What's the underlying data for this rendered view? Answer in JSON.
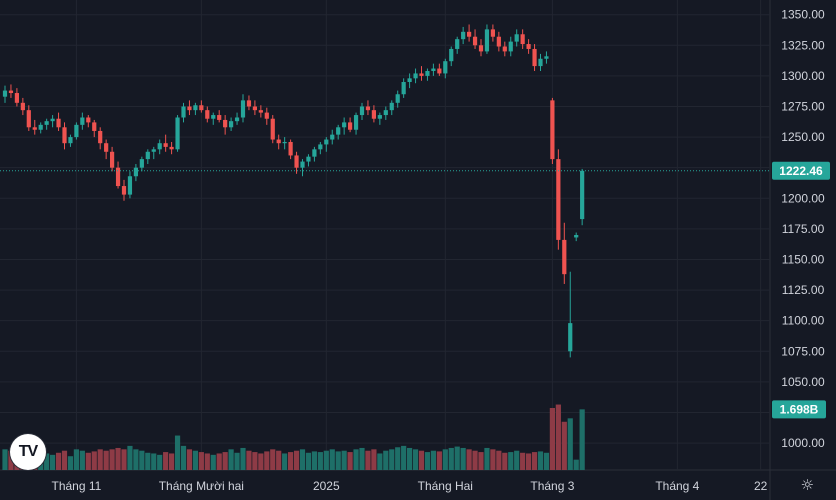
{
  "chart_data": {
    "type": "candlestick",
    "y_axis": {
      "min": 978,
      "max": 1362,
      "ticks": [
        1000,
        1025,
        1050,
        1075,
        1100,
        1125,
        1150,
        1175,
        1200,
        1225,
        1250,
        1275,
        1300,
        1325,
        1350
      ],
      "tick_labels": [
        "1000.00",
        "1025.00",
        "1050.00",
        "1075.00",
        "1100.00",
        "1125.00",
        "1150.00",
        "1175.00",
        "1200.00",
        "1225.00",
        "1250.00",
        "1275.00",
        "1300.00",
        "1325.00",
        "1350.00"
      ]
    },
    "x_axis": {
      "labels": [
        {
          "text": "Tháng 11",
          "index": 12
        },
        {
          "text": "Tháng Mười hai",
          "index": 33
        },
        {
          "text": "2025",
          "index": 54
        },
        {
          "text": "Tháng Hai",
          "index": 74
        },
        {
          "text": "Tháng 3",
          "index": 92
        },
        {
          "text": "Tháng 4",
          "index": 113
        },
        {
          "text": "22",
          "index": 127
        }
      ]
    },
    "last_price": {
      "value": 1222.46,
      "label": "1222.46"
    },
    "last_volume": {
      "label": "1.698B"
    },
    "volume_max": 1.698,
    "colors": {
      "up": "#26a69a",
      "down": "#ef5350",
      "up_vol": "#1e6f68",
      "down_vol": "#8e3b46"
    },
    "candles": [
      [
        1283,
        1292,
        1278,
        1288,
        0.3
      ],
      [
        1288,
        1293,
        1282,
        1286,
        0.28
      ],
      [
        1286,
        1290,
        1275,
        1278,
        0.25
      ],
      [
        1278,
        1282,
        1268,
        1272,
        0.22
      ],
      [
        1272,
        1276,
        1255,
        1258,
        0.3
      ],
      [
        1258,
        1264,
        1252,
        1256,
        0.28
      ],
      [
        1256,
        1262,
        1253,
        1260,
        0.2
      ],
      [
        1260,
        1265,
        1256,
        1263,
        0.24
      ],
      [
        1263,
        1268,
        1258,
        1265,
        0.22
      ],
      [
        1265,
        1270,
        1255,
        1258,
        0.25
      ],
      [
        1258,
        1262,
        1240,
        1245,
        0.28
      ],
      [
        1245,
        1252,
        1242,
        1250,
        0.2
      ],
      [
        1250,
        1262,
        1248,
        1260,
        0.3
      ],
      [
        1260,
        1270,
        1256,
        1266,
        0.28
      ],
      [
        1266,
        1268,
        1258,
        1262,
        0.25
      ],
      [
        1262,
        1264,
        1250,
        1255,
        0.27
      ],
      [
        1255,
        1258,
        1240,
        1245,
        0.3
      ],
      [
        1245,
        1248,
        1232,
        1238,
        0.28
      ],
      [
        1238,
        1242,
        1222,
        1225,
        0.3
      ],
      [
        1225,
        1230,
        1208,
        1210,
        0.32
      ],
      [
        1210,
        1215,
        1198,
        1203,
        0.3
      ],
      [
        1203,
        1222,
        1200,
        1218,
        0.35
      ],
      [
        1218,
        1228,
        1214,
        1225,
        0.3
      ],
      [
        1225,
        1234,
        1222,
        1232,
        0.28
      ],
      [
        1232,
        1240,
        1228,
        1238,
        0.25
      ],
      [
        1238,
        1242,
        1232,
        1240,
        0.24
      ],
      [
        1240,
        1248,
        1236,
        1245,
        0.22
      ],
      [
        1245,
        1252,
        1238,
        1242,
        0.26
      ],
      [
        1242,
        1246,
        1236,
        1240,
        0.24
      ],
      [
        1240,
        1268,
        1238,
        1266,
        0.5
      ],
      [
        1266,
        1278,
        1262,
        1275,
        0.35
      ],
      [
        1275,
        1280,
        1268,
        1272,
        0.3
      ],
      [
        1272,
        1278,
        1268,
        1276,
        0.28
      ],
      [
        1276,
        1280,
        1270,
        1272,
        0.26
      ],
      [
        1272,
        1275,
        1262,
        1265,
        0.24
      ],
      [
        1265,
        1270,
        1260,
        1268,
        0.22
      ],
      [
        1268,
        1272,
        1262,
        1264,
        0.24
      ],
      [
        1264,
        1268,
        1252,
        1258,
        0.26
      ],
      [
        1258,
        1266,
        1255,
        1263,
        0.3
      ],
      [
        1263,
        1270,
        1260,
        1266,
        0.25
      ],
      [
        1266,
        1285,
        1262,
        1280,
        0.32
      ],
      [
        1280,
        1284,
        1272,
        1275,
        0.28
      ],
      [
        1275,
        1280,
        1268,
        1272,
        0.26
      ],
      [
        1272,
        1276,
        1266,
        1270,
        0.24
      ],
      [
        1270,
        1274,
        1260,
        1265,
        0.27
      ],
      [
        1265,
        1268,
        1245,
        1248,
        0.3
      ],
      [
        1248,
        1252,
        1240,
        1245,
        0.28
      ],
      [
        1245,
        1250,
        1240,
        1246,
        0.24
      ],
      [
        1246,
        1248,
        1232,
        1235,
        0.26
      ],
      [
        1235,
        1238,
        1220,
        1225,
        0.28
      ],
      [
        1225,
        1232,
        1218,
        1230,
        0.3
      ],
      [
        1230,
        1236,
        1226,
        1234,
        0.25
      ],
      [
        1234,
        1242,
        1230,
        1240,
        0.27
      ],
      [
        1240,
        1246,
        1236,
        1244,
        0.26
      ],
      [
        1244,
        1250,
        1238,
        1248,
        0.28
      ],
      [
        1248,
        1256,
        1244,
        1252,
        0.3
      ],
      [
        1252,
        1260,
        1248,
        1258,
        0.27
      ],
      [
        1258,
        1266,
        1252,
        1262,
        0.28
      ],
      [
        1262,
        1266,
        1254,
        1256,
        0.26
      ],
      [
        1256,
        1270,
        1252,
        1268,
        0.3
      ],
      [
        1268,
        1278,
        1264,
        1275,
        0.32
      ],
      [
        1275,
        1280,
        1268,
        1272,
        0.28
      ],
      [
        1272,
        1276,
        1262,
        1265,
        0.3
      ],
      [
        1265,
        1270,
        1260,
        1268,
        0.24
      ],
      [
        1268,
        1275,
        1264,
        1272,
        0.28
      ],
      [
        1272,
        1280,
        1268,
        1278,
        0.3
      ],
      [
        1278,
        1288,
        1274,
        1285,
        0.33
      ],
      [
        1285,
        1298,
        1282,
        1295,
        0.35
      ],
      [
        1295,
        1302,
        1290,
        1298,
        0.32
      ],
      [
        1298,
        1306,
        1294,
        1302,
        0.3
      ],
      [
        1302,
        1308,
        1296,
        1300,
        0.28
      ],
      [
        1300,
        1306,
        1296,
        1304,
        0.26
      ],
      [
        1304,
        1310,
        1300,
        1306,
        0.28
      ],
      [
        1306,
        1310,
        1300,
        1302,
        0.27
      ],
      [
        1302,
        1314,
        1298,
        1312,
        0.3
      ],
      [
        1312,
        1324,
        1308,
        1322,
        0.32
      ],
      [
        1322,
        1332,
        1318,
        1330,
        0.34
      ],
      [
        1330,
        1340,
        1326,
        1336,
        0.32
      ],
      [
        1336,
        1342,
        1328,
        1332,
        0.3
      ],
      [
        1332,
        1338,
        1322,
        1325,
        0.28
      ],
      [
        1325,
        1330,
        1316,
        1320,
        0.26
      ],
      [
        1320,
        1342,
        1318,
        1338,
        0.32
      ],
      [
        1338,
        1342,
        1328,
        1332,
        0.3
      ],
      [
        1332,
        1336,
        1320,
        1324,
        0.28
      ],
      [
        1324,
        1328,
        1316,
        1320,
        0.25
      ],
      [
        1320,
        1332,
        1316,
        1328,
        0.26
      ],
      [
        1328,
        1338,
        1324,
        1334,
        0.28
      ],
      [
        1334,
        1338,
        1322,
        1326,
        0.25
      ],
      [
        1326,
        1330,
        1318,
        1322,
        0.24
      ],
      [
        1322,
        1326,
        1304,
        1308,
        0.26
      ],
      [
        1308,
        1318,
        1304,
        1314,
        0.27
      ],
      [
        1314,
        1320,
        1310,
        1316,
        0.25
      ],
      [
        1280,
        1282,
        1228,
        1232,
        0.9
      ],
      [
        1232,
        1240,
        1158,
        1166,
        0.95
      ],
      [
        1166,
        1180,
        1130,
        1138,
        0.7
      ],
      [
        1075,
        1140,
        1070,
        1098,
        0.75
      ],
      [
        1168,
        1172,
        1165,
        1170,
        0.15
      ],
      [
        1183,
        1224,
        1178,
        1222.46,
        0.88
      ]
    ]
  }
}
